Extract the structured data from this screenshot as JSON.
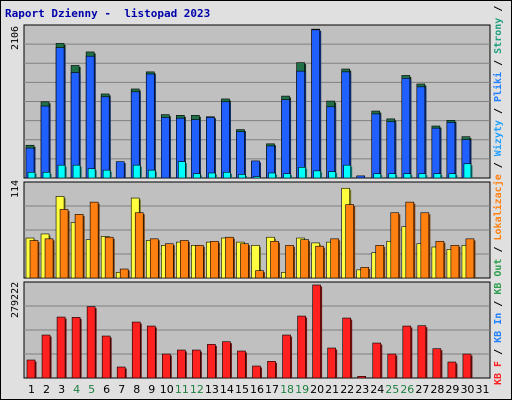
{
  "title": "Raport Dzienny -  listopad 2023",
  "colors": {
    "plot_bg": "#c0c0c0",
    "grid": "#808080",
    "visits": "#2060ff",
    "pages": "#00ffff",
    "unique": "#207048",
    "traffic_shade": "#ff8010",
    "sites": "#ffff40",
    "kb": "#ff2020"
  },
  "legend": [
    {
      "text": "Wyjścia",
      "color": "#207048"
    },
    {
      "text": "Strony",
      "color": "#20a080"
    },
    {
      "text": "Pliki",
      "color": "#2080ff"
    },
    {
      "text": "Wizyty",
      "color": "#20a0ff"
    },
    {
      "text": "Lokalizacje",
      "color": "#ff8010"
    },
    {
      "text": "KB Out",
      "color": "#30a050"
    },
    {
      "text": "KB In",
      "color": "#2080ff"
    },
    {
      "text": "KB F",
      "color": "#ff2020"
    }
  ],
  "legend_separator": " / ",
  "chart_data": [
    {
      "type": "bar",
      "name": "hits",
      "ylabel": "2106",
      "ylim": [
        0,
        2106
      ],
      "categories": [
        "1",
        "2",
        "3",
        "4",
        "5",
        "6",
        "7",
        "8",
        "9",
        "10",
        "11",
        "12",
        "13",
        "14",
        "15",
        "16",
        "17",
        "18",
        "19",
        "20",
        "21",
        "22",
        "23",
        "24",
        "25",
        "26",
        "27",
        "28",
        "29",
        "30",
        "31"
      ],
      "weekend_days": [
        4,
        5,
        11,
        12,
        18,
        19,
        25,
        26
      ],
      "series": [
        {
          "name": "Wyjścia",
          "values": [
            460,
            1070,
            1890,
            1580,
            1770,
            1180,
            0,
            1250,
            1490,
            890,
            880,
            880,
            860,
            1110,
            680,
            230,
            480,
            1150,
            1620,
            2090,
            1080,
            1530,
            0,
            940,
            830,
            1440,
            1320,
            730,
            810,
            580,
            0
          ]
        },
        {
          "name": "Pliki",
          "values": [
            420,
            1010,
            1830,
            1480,
            1710,
            1140,
            230,
            1210,
            1460,
            850,
            840,
            820,
            850,
            1070,
            650,
            240,
            450,
            1100,
            1500,
            2080,
            1000,
            1490,
            30,
            900,
            790,
            1400,
            1280,
            700,
            780,
            540,
            0
          ]
        },
        {
          "name": "Strony",
          "values": [
            80,
            80,
            180,
            180,
            130,
            110,
            0,
            180,
            110,
            0,
            230,
            60,
            70,
            80,
            50,
            20,
            70,
            60,
            150,
            100,
            90,
            180,
            0,
            60,
            60,
            60,
            60,
            60,
            60,
            200,
            0
          ]
        },
        {
          "name": "Wizyty",
          "values": [
            70,
            70,
            160,
            150,
            120,
            100,
            0,
            160,
            100,
            0,
            200,
            50,
            60,
            70,
            40,
            20,
            60,
            50,
            140,
            90,
            80,
            160,
            0,
            50,
            50,
            50,
            50,
            50,
            50,
            180,
            0
          ]
        }
      ]
    },
    {
      "type": "bar",
      "name": "visits",
      "ylabel": "114",
      "ylim": [
        0,
        114
      ],
      "categories": [
        "1",
        "2",
        "3",
        "4",
        "5",
        "6",
        "7",
        "8",
        "9",
        "10",
        "11",
        "12",
        "13",
        "14",
        "15",
        "16",
        "17",
        "18",
        "19",
        "20",
        "21",
        "22",
        "23",
        "24",
        "25",
        "26",
        "27",
        "28",
        "29",
        "30",
        "31"
      ],
      "series": [
        {
          "name": "Wizyty",
          "values": [
            49,
            54,
            100,
            68,
            47,
            51,
            7,
            98,
            46,
            40,
            44,
            40,
            44,
            49,
            44,
            40,
            50,
            7,
            49,
            43,
            44,
            110,
            10,
            31,
            45,
            63,
            42,
            38,
            35,
            40,
            0
          ]
        },
        {
          "name": "Lokalizacje",
          "values": [
            46,
            48,
            84,
            78,
            93,
            50,
            11,
            80,
            48,
            42,
            46,
            40,
            45,
            50,
            42,
            9,
            45,
            40,
            47,
            39,
            48,
            90,
            13,
            40,
            80,
            93,
            80,
            45,
            40,
            48,
            0
          ]
        }
      ]
    },
    {
      "type": "bar",
      "name": "kbytes",
      "ylabel": "279222",
      "ylim": [
        0,
        279222
      ],
      "categories": [
        "1",
        "2",
        "3",
        "4",
        "5",
        "6",
        "7",
        "8",
        "9",
        "10",
        "11",
        "12",
        "13",
        "14",
        "15",
        "16",
        "17",
        "18",
        "19",
        "20",
        "21",
        "22",
        "23",
        "24",
        "25",
        "26",
        "27",
        "28",
        "29",
        "30",
        "31"
      ],
      "series": [
        {
          "name": "KB F",
          "values": [
            54000,
            129000,
            183000,
            182000,
            214000,
            126000,
            33000,
            168000,
            156000,
            72000,
            84000,
            84000,
            101000,
            109000,
            81000,
            36000,
            50000,
            129000,
            186000,
            279222,
            90000,
            180000,
            5000,
            105000,
            72000,
            156000,
            157000,
            88000,
            48000,
            72000,
            0
          ]
        }
      ]
    }
  ]
}
